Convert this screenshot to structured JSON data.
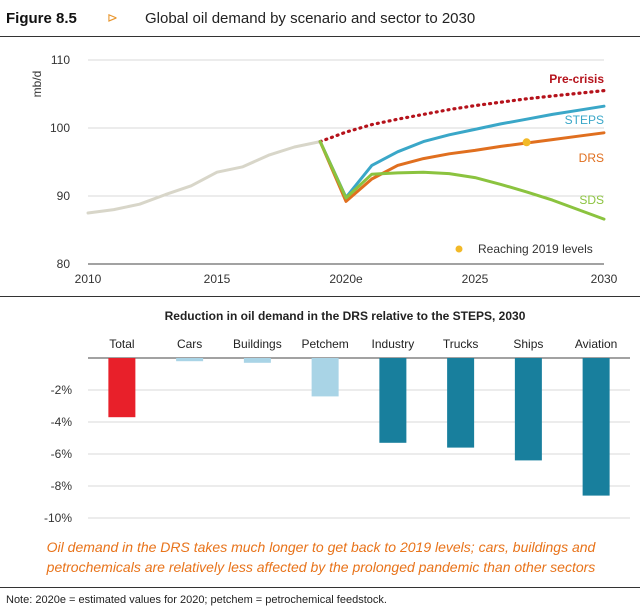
{
  "header": {
    "figure_label": "Figure 8.5",
    "arrow_glyph": "⊳",
    "title": "Global oil demand by scenario and sector to 2030"
  },
  "chart_data": [
    {
      "type": "line",
      "title": "",
      "xlabel": "",
      "ylabel": "mb/d",
      "xlim": [
        2010,
        2030
      ],
      "ylim": [
        80,
        110
      ],
      "x_ticks": [
        "2010",
        "2015",
        "2020e",
        "2025",
        "2030"
      ],
      "y_ticks": [
        "80",
        "90",
        "100",
        "110"
      ],
      "grid": "horizontal",
      "series": [
        {
          "name": "",
          "color": "#d8d6c9",
          "style": "solid",
          "x": [
            2010,
            2011,
            2012,
            2013,
            2014,
            2015,
            2016,
            2017,
            2018,
            2019
          ],
          "y": [
            87.5,
            88.0,
            88.8,
            90.2,
            91.5,
            93.5,
            94.3,
            96.0,
            97.2,
            98.0
          ]
        },
        {
          "name": "Pre-crisis",
          "color": "#b5121b",
          "style": "dotted",
          "x": [
            2019,
            2020,
            2021,
            2022,
            2023,
            2024,
            2025,
            2026,
            2027,
            2028,
            2029,
            2030
          ],
          "y": [
            98.0,
            99.4,
            100.5,
            101.3,
            102.0,
            102.7,
            103.3,
            103.8,
            104.3,
            104.7,
            105.1,
            105.5
          ]
        },
        {
          "name": "STEPS",
          "color": "#3aa7c8",
          "style": "solid",
          "x": [
            2019,
            2020,
            2021,
            2022,
            2023,
            2024,
            2025,
            2026,
            2027,
            2028,
            2029,
            2030
          ],
          "y": [
            98.0,
            89.8,
            94.5,
            96.5,
            98.0,
            99.0,
            99.8,
            100.6,
            101.3,
            102.0,
            102.6,
            103.2
          ]
        },
        {
          "name": "DRS",
          "color": "#e06f1f",
          "style": "solid",
          "x": [
            2019,
            2020,
            2021,
            2022,
            2023,
            2024,
            2025,
            2026,
            2027,
            2028,
            2029,
            2030
          ],
          "y": [
            98.0,
            89.2,
            92.5,
            94.5,
            95.5,
            96.2,
            96.7,
            97.3,
            97.8,
            98.3,
            98.8,
            99.3
          ]
        },
        {
          "name": "SDS",
          "color": "#8bc33f",
          "style": "solid",
          "x": [
            2019,
            2020,
            2021,
            2022,
            2023,
            2024,
            2025,
            2026,
            2027,
            2028,
            2029,
            2030
          ],
          "y": [
            98.0,
            89.7,
            93.2,
            93.4,
            93.5,
            93.3,
            92.7,
            91.7,
            90.6,
            89.4,
            88.0,
            86.6
          ]
        }
      ],
      "markers": [
        {
          "series": "DRS",
          "x": 2027,
          "y": 97.9,
          "color": "#f2b928"
        }
      ],
      "legend": [
        {
          "label": "Reaching 2019 levels",
          "marker": "dot",
          "color": "#f2b928"
        }
      ]
    },
    {
      "type": "bar",
      "title": "Reduction in oil demand in the DRS relative to the STEPS, 2030",
      "categories": [
        "Total",
        "Cars",
        "Buildings",
        "Petchem",
        "Industry",
        "Trucks",
        "Ships",
        "Aviation"
      ],
      "values": [
        -3.7,
        -0.2,
        -0.3,
        -2.4,
        -5.3,
        -5.6,
        -6.4,
        -8.6
      ],
      "colors": [
        "#e8202a",
        "#a9d4e6",
        "#a9d4e6",
        "#a9d4e6",
        "#187f9d",
        "#187f9d",
        "#187f9d",
        "#187f9d"
      ],
      "ylim": [
        -10,
        0
      ],
      "y_ticks": [
        "-2%",
        "-4%",
        "-6%",
        "-8%",
        "-10%"
      ],
      "grid": "horizontal"
    }
  ],
  "caption": {
    "line1": "Oil demand in the DRS takes much longer to get back to 2019 levels; cars, buildings and",
    "line2": "petrochemicals are relatively less affected by the prolonged pandemic than other sectors"
  },
  "note": "Note: 2020e = estimated values for 2020; petchem = petrochemical feedstock."
}
